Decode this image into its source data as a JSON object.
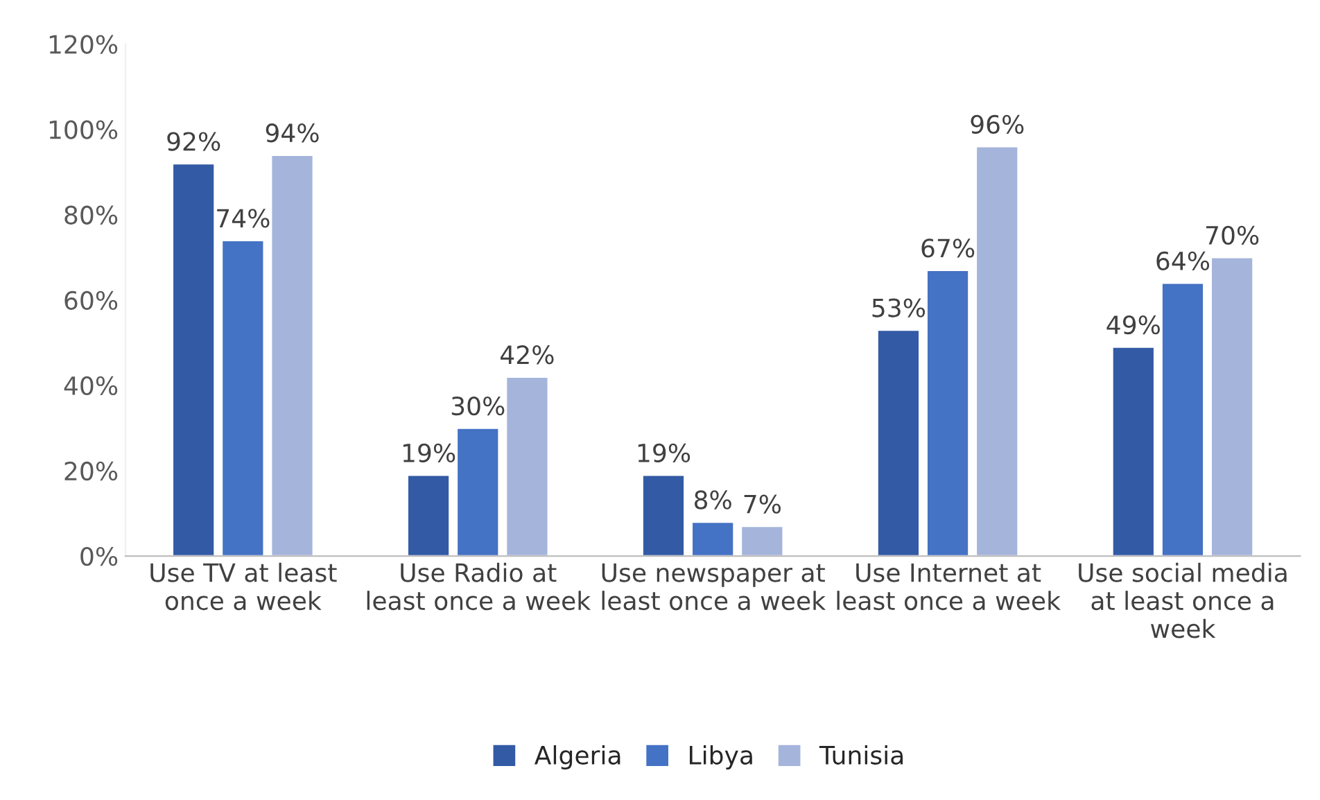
{
  "chart_data": {
    "type": "bar",
    "categories": [
      "Use TV at least once a week",
      "Use Radio at least once a week",
      "Use newspaper at least once a week",
      "Use Internet at least once a week",
      "Use social media at least once a week"
    ],
    "series": [
      {
        "name": "Algeria",
        "color": "#335aa5",
        "values": [
          92,
          19,
          19,
          53,
          49
        ],
        "value_labels": [
          "92%",
          "19%",
          "19%",
          "53%",
          "49%"
        ]
      },
      {
        "name": "Libya",
        "color": "#4472c4",
        "values": [
          74,
          30,
          8,
          67,
          64
        ],
        "value_labels": [
          "74%",
          "30%",
          "8%",
          "67%",
          "64%"
        ]
      },
      {
        "name": "Tunisia",
        "color": "#a5b4db",
        "values": [
          94,
          42,
          7,
          96,
          70
        ],
        "value_labels": [
          "94%",
          "42%",
          "7%",
          "96%",
          "70%"
        ]
      }
    ],
    "ylim": [
      0,
      120
    ],
    "yticks": [
      {
        "value": 0,
        "label": "0%"
      },
      {
        "value": 20,
        "label": "20%"
      },
      {
        "value": 40,
        "label": "40%"
      },
      {
        "value": 60,
        "label": "60%"
      },
      {
        "value": 80,
        "label": "80%"
      },
      {
        "value": 100,
        "label": "100%"
      },
      {
        "value": 120,
        "label": "120%"
      }
    ],
    "grid": false,
    "legend": "bottom"
  }
}
